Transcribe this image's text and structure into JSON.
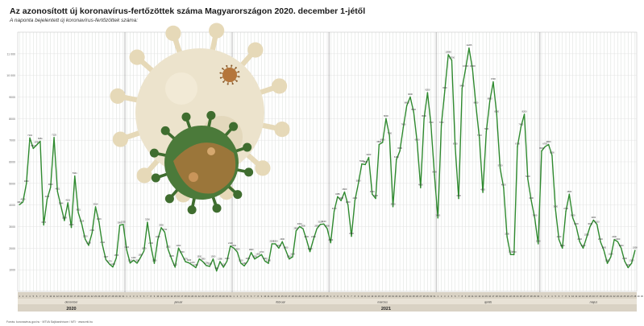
{
  "header": {
    "title": "Az azonosított új koronavírus-fertőzöttek száma Magyarországon 2020. december 1-jétől",
    "subtitle": "A naponta bejelentett új koronavírus-fertőzöttek száma:"
  },
  "footer": {
    "text": "Forrás: koronavirus.gov.hu  ·  MTVA Sajtóarchívum / MTI  ·  www.mti.hu"
  },
  "colors": {
    "line": "#2f8a2f",
    "grid": "#cfd6cf",
    "axis_band": "#d9d2c4",
    "virus_light": "#ece3cc",
    "virus_dark": "#4b7a3a",
    "virus_accent": "#b5763b"
  },
  "chart_data": {
    "type": "line",
    "title": "Az azonosított új koronavírus-fertőzöttek száma Magyarországon 2020. december 1-jétől",
    "subtitle": "A naponta bejelentett új koronavírus-fertőzöttek száma:",
    "xlabel": "",
    "ylabel": "",
    "ylim": [
      0,
      12000
    ],
    "yticks": [
      1000,
      2000,
      3000,
      4000,
      5000,
      6000,
      7000,
      8000,
      9000,
      10000,
      11000
    ],
    "grid": true,
    "legend": "none",
    "months": [
      {
        "label": "december",
        "days": 31
      },
      {
        "label": "január",
        "days": 31
      },
      {
        "label": "február",
        "days": 28
      },
      {
        "label": "március",
        "days": 31
      },
      {
        "label": "április",
        "days": 30
      },
      {
        "label": "május",
        "days": 31
      }
    ],
    "years": [
      {
        "label": "2020",
        "start_index": 0,
        "days": 31
      },
      {
        "label": "2021",
        "start_index": 31,
        "days": 151
      }
    ],
    "series": [
      {
        "values": [
          4014,
          4139,
          4983,
          7104,
          6617,
          6783,
          6951,
          3074,
          4271,
          4819,
          7125,
          4621,
          3944,
          3278,
          4101,
          2960,
          5341,
          3651,
          3129,
          2420,
          2130,
          2706,
          3914,
          3216,
          2144,
          1467,
          1270,
          1130,
          1545,
          3061,
          3102,
          1926,
          1310,
          1440,
          1306,
          1567,
          1870,
          3200,
          2100,
          1300,
          2400,
          2950,
          2740,
          1932,
          1505,
          1122,
          2003,
          1700,
          1376,
          1320,
          1215,
          1100,
          1500,
          1380,
          1200,
          1156,
          1500,
          944,
          1380,
          1120,
          1400,
          2100,
          2000,
          1820,
          1310,
          1180,
          1400,
          1800,
          1500,
          1600,
          1700,
          1400,
          1300,
          2200,
          2200,
          2000,
          2300,
          1900,
          1500,
          1600,
          2800,
          3000,
          2900,
          2400,
          1840,
          2400,
          2900,
          3100,
          3120,
          2900,
          2250,
          3710,
          4385,
          4200,
          4600,
          4000,
          2550,
          4200,
          5000,
          5900,
          5870,
          6200,
          4500,
          4300,
          6800,
          6900,
          8000,
          7200,
          3920,
          6100,
          6500,
          7600,
          8600,
          9000,
          8300,
          6900,
          4800,
          8000,
          9200,
          7700,
          5400,
          3400,
          7700,
          9300,
          10960,
          10700,
          6700,
          4300,
          9400,
          10300,
          11265,
          10300,
          8600,
          7100,
          4583,
          7400,
          8800,
          9700,
          8200,
          5700,
          4800,
          2530,
          1710,
          1700,
          6700,
          7600,
          8200,
          5200,
          4200,
          3400,
          2200,
          6500,
          6700,
          6800,
          6300,
          3800,
          2400,
          2000,
          3700,
          4500,
          3400,
          3000,
          2300,
          2000,
          2500,
          3000,
          3300,
          3100,
          2300,
          1900,
          1300,
          1600,
          2400,
          2300,
          2000,
          1400,
          1100,
          1300,
          1900
        ]
      }
    ]
  }
}
